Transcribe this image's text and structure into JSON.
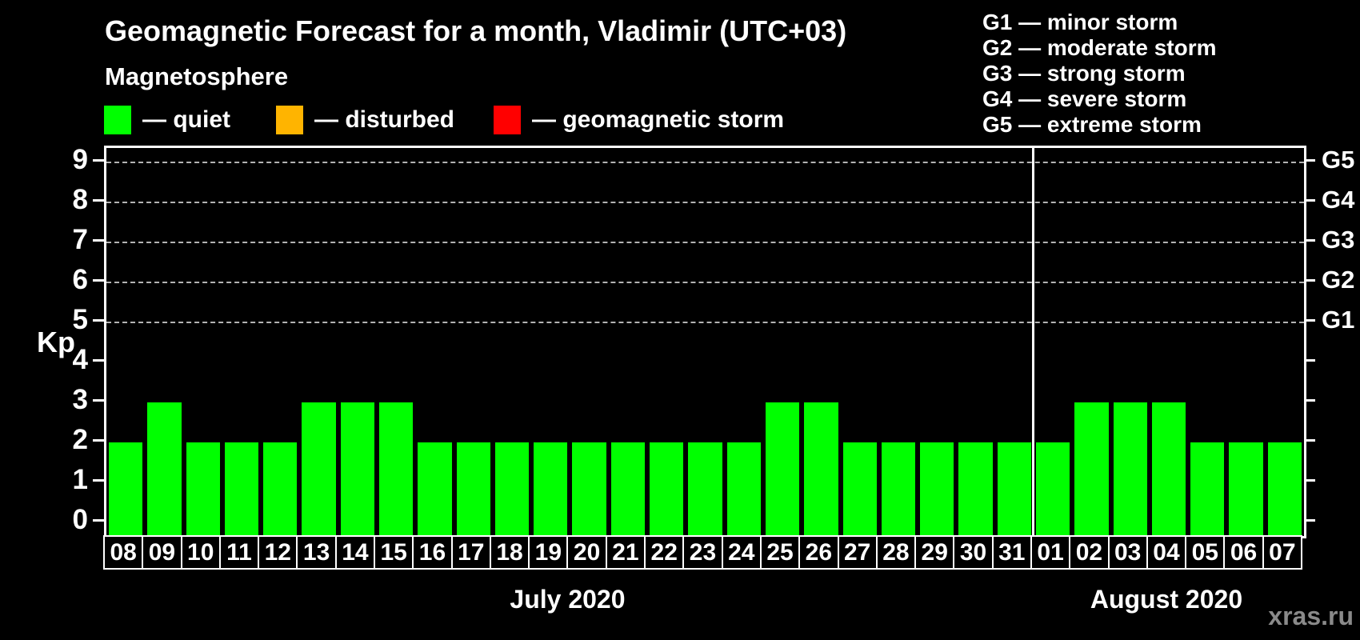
{
  "title": "Geomagnetic Forecast for a month, Vladimir (UTC+03)",
  "legend": {
    "heading": "Magnetosphere",
    "items": [
      {
        "name": "quiet",
        "label": "— quiet",
        "color": "#00ff00",
        "x": 130
      },
      {
        "name": "disturbed",
        "label": "— disturbed",
        "color": "#ffb400",
        "x": 345
      },
      {
        "name": "geomagnetic-storm",
        "label": "— geomagnetic storm",
        "color": "#ff0000",
        "x": 617
      }
    ]
  },
  "storm_scale_legend": [
    "G1 — minor storm",
    "G2 — moderate storm",
    "G3 — strong storm",
    "G4 — severe storm",
    "G5 — extreme storm"
  ],
  "chart_data": {
    "type": "bar",
    "ylabel": "Kp",
    "ylim": [
      0,
      9
    ],
    "y_ticks": [
      0,
      1,
      2,
      3,
      4,
      5,
      6,
      7,
      8,
      9
    ],
    "grid_values": [
      5,
      6,
      7,
      8,
      9
    ],
    "grid_style": "dashed",
    "right_axis_labels": [
      {
        "value": 5,
        "label": "G1"
      },
      {
        "value": 6,
        "label": "G2"
      },
      {
        "value": 7,
        "label": "G3"
      },
      {
        "value": 8,
        "label": "G4"
      },
      {
        "value": 9,
        "label": "G5"
      }
    ],
    "categories": [
      "08",
      "09",
      "10",
      "11",
      "12",
      "13",
      "14",
      "15",
      "16",
      "17",
      "18",
      "19",
      "20",
      "21",
      "22",
      "23",
      "24",
      "25",
      "26",
      "27",
      "28",
      "29",
      "30",
      "31",
      "01",
      "02",
      "03",
      "04",
      "05",
      "06",
      "07"
    ],
    "values": [
      2,
      3,
      2,
      2,
      2,
      3,
      3,
      3,
      2,
      2,
      2,
      2,
      2,
      2,
      2,
      2,
      2,
      3,
      3,
      2,
      2,
      2,
      2,
      2,
      2,
      3,
      3,
      3,
      2,
      2,
      2
    ],
    "bar_status": "quiet",
    "bar_color": "#00ff00",
    "months": [
      {
        "label": "July 2020",
        "days": 24
      },
      {
        "label": "August 2020",
        "days": 7
      }
    ]
  },
  "watermark": "xras.ru"
}
